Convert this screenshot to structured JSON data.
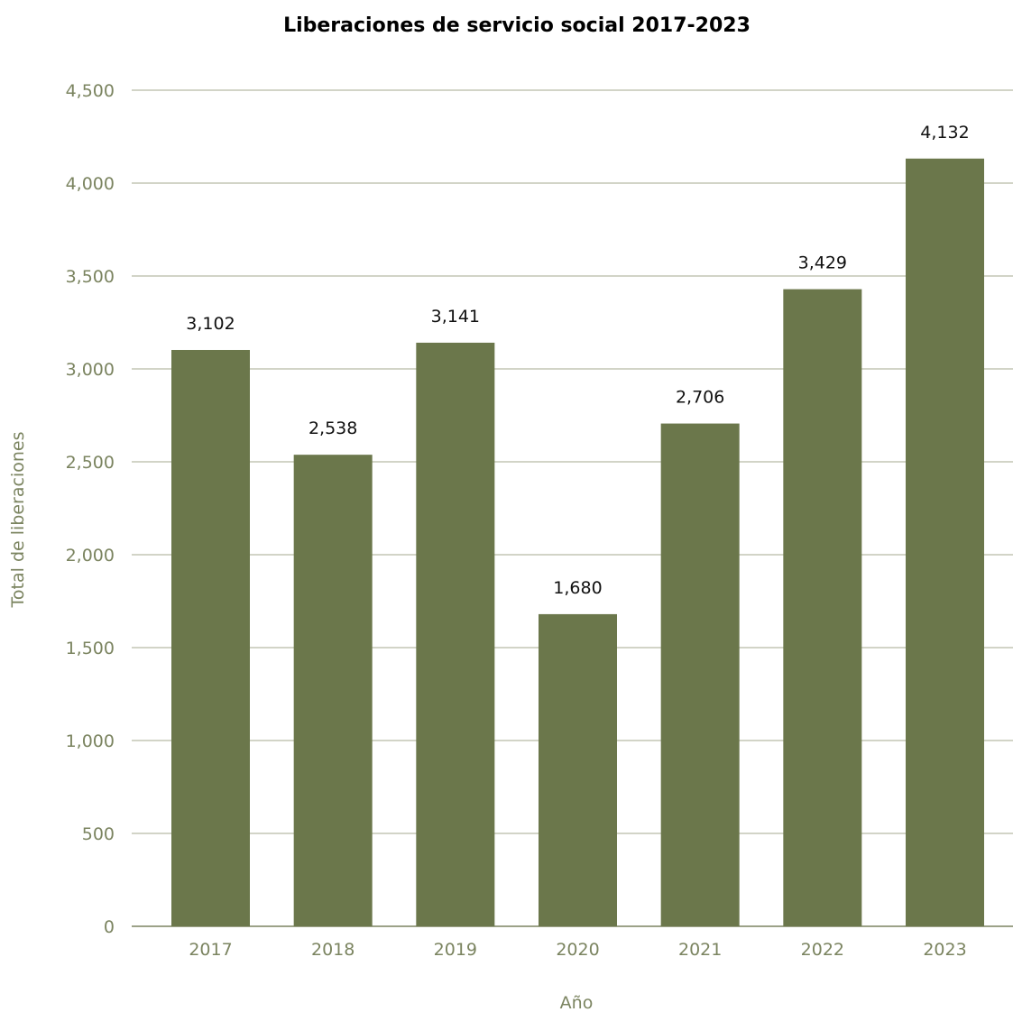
{
  "chart_data": {
    "type": "bar",
    "title": "Liberaciones de servicio social 2017-2023",
    "xlabel": "Año",
    "ylabel": "Total de liberaciones",
    "categories": [
      "2017",
      "2018",
      "2019",
      "2020",
      "2021",
      "2022",
      "2023"
    ],
    "values": [
      3102,
      2538,
      3141,
      1680,
      2706,
      3429,
      4132
    ],
    "data_labels": [
      "3,102",
      "2,538",
      "3,141",
      "1,680",
      "2,706",
      "3,429",
      "4,132"
    ],
    "ylim": [
      0,
      4500
    ],
    "yticks": [
      0,
      500,
      1000,
      1500,
      2000,
      2500,
      3000,
      3500,
      4000,
      4500
    ],
    "ytick_labels": [
      "0",
      "500",
      "1,000",
      "1,500",
      "2,000",
      "2,500",
      "3,000",
      "3,500",
      "4,000",
      "4,500"
    ],
    "grid": true,
    "legend": "none",
    "colors": {
      "bar": "#6b774b",
      "axis_text": "#7b8460",
      "gridline": "#a4a98f",
      "baseline": "#7b8460"
    }
  }
}
